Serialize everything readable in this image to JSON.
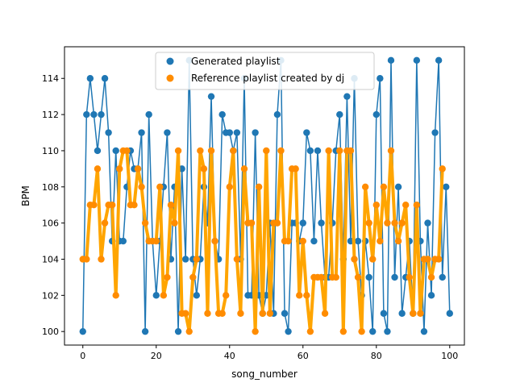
{
  "chart_data": {
    "type": "line",
    "xlabel": "song_number",
    "ylabel": "BPM",
    "xlim": [
      -5,
      104
    ],
    "ylim": [
      99.25,
      115.75
    ],
    "x_ticks": [
      0,
      20,
      40,
      60,
      80,
      100
    ],
    "y_ticks": [
      100,
      102,
      104,
      106,
      108,
      110,
      112,
      114
    ],
    "legend_position": "top-center",
    "series": [
      {
        "name": "Generated playlist",
        "color": "#1f77b4",
        "marker": "circle",
        "values": [
          100,
          112,
          114,
          112,
          110,
          112,
          114,
          111,
          105,
          110,
          105,
          105,
          108,
          110,
          109,
          109,
          111,
          100,
          112,
          105,
          102,
          105,
          108,
          111,
          104,
          108,
          100,
          109,
          104,
          115,
          104,
          102,
          104,
          108,
          106,
          113,
          105,
          104,
          112,
          111,
          111,
          110,
          111,
          104,
          114,
          102,
          102,
          111,
          102,
          101,
          102,
          106,
          101,
          112,
          115,
          101,
          100,
          106,
          106,
          105,
          106,
          111,
          110,
          105,
          110,
          106,
          103,
          103,
          106,
          110,
          112,
          104,
          113,
          105,
          114,
          105,
          102,
          105,
          103,
          100,
          112,
          114,
          101,
          100,
          115,
          103,
          108,
          101,
          103,
          105,
          101,
          115,
          105,
          100,
          106,
          102,
          111,
          115,
          103,
          108,
          101
        ]
      },
      {
        "name": "Reference playlist created by dj",
        "color": "#ffa500",
        "marker": "circle",
        "values": [
          104,
          104,
          107,
          107,
          109,
          104,
          106,
          107,
          107,
          102,
          109,
          110,
          110,
          107,
          107,
          109,
          108,
          106,
          105,
          105,
          105,
          108,
          102,
          103,
          107,
          106,
          110,
          101,
          101,
          100,
          103,
          104,
          110,
          109,
          101,
          110,
          105,
          101,
          101,
          102,
          108,
          110,
          104,
          101,
          109,
          106,
          106,
          100,
          108,
          101,
          110,
          101,
          106,
          106,
          110,
          105,
          105,
          109,
          109,
          102,
          105,
          102,
          100,
          103,
          103,
          103,
          101,
          110,
          103,
          103,
          110,
          100,
          110,
          110,
          104,
          103,
          100,
          108,
          106,
          104,
          107,
          105,
          108,
          106,
          110,
          106,
          105,
          106,
          107,
          103,
          101,
          107,
          101,
          104,
          104,
          103,
          104,
          104,
          109
        ]
      }
    ]
  }
}
